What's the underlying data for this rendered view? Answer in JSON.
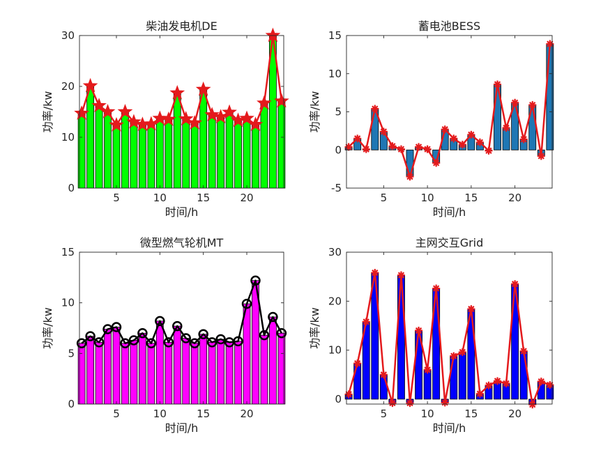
{
  "chart_data": [
    {
      "type": "bar",
      "title": "柴油发电机DE",
      "xlabel": "时间/h",
      "ylabel": "功率/kw",
      "x": [
        1,
        2,
        3,
        4,
        5,
        6,
        7,
        8,
        9,
        10,
        11,
        12,
        13,
        14,
        15,
        16,
        17,
        18,
        19,
        20,
        21,
        22,
        23,
        24
      ],
      "values": [
        14.7,
        20.1,
        16.2,
        15.0,
        12.4,
        15.0,
        13.0,
        12.5,
        12.6,
        13.7,
        13.5,
        18.7,
        13.6,
        12.8,
        19.4,
        14.4,
        14.0,
        14.9,
        13.3,
        13.7,
        12.5,
        16.7,
        30.0,
        17.1
      ],
      "ylim": [
        0,
        30
      ],
      "yticks": [
        0,
        10,
        20,
        30
      ],
      "xticks": [
        5,
        10,
        15,
        20
      ],
      "bar_color": "#00ff00",
      "line_color": "#e41a1c",
      "marker": "star"
    },
    {
      "type": "bar",
      "title": "蓄电池BESS",
      "xlabel": "时间/h",
      "ylabel": "功率/kw",
      "x": [
        1,
        2,
        3,
        4,
        5,
        6,
        7,
        8,
        9,
        10,
        11,
        12,
        13,
        14,
        15,
        16,
        17,
        18,
        19,
        20,
        21,
        22,
        23,
        24
      ],
      "values": [
        0.4,
        1.5,
        0.1,
        5.4,
        2.4,
        0.5,
        0.1,
        -3.5,
        0.4,
        0.1,
        -1.7,
        2.7,
        1.5,
        0.7,
        2.0,
        1.0,
        -0.1,
        8.6,
        2.9,
        6.2,
        1.4,
        5.9,
        -0.8,
        13.9
      ],
      "ylim": [
        -5,
        15
      ],
      "yticks": [
        -5,
        0,
        5,
        10,
        15
      ],
      "xticks": [
        5,
        10,
        15,
        20
      ],
      "bar_color": "#1f77b4",
      "line_color": "#e41a1c",
      "marker": "asterisk"
    },
    {
      "type": "bar",
      "title": "微型燃气轮机MT",
      "xlabel": "时间/h",
      "ylabel": "功率/kw",
      "x": [
        1,
        2,
        3,
        4,
        5,
        6,
        7,
        8,
        9,
        10,
        11,
        12,
        13,
        14,
        15,
        16,
        17,
        18,
        19,
        20,
        21,
        22,
        23,
        24
      ],
      "values": [
        6.0,
        6.7,
        6.1,
        7.4,
        7.6,
        6.0,
        6.3,
        7.0,
        6.0,
        8.2,
        6.1,
        7.7,
        6.5,
        6.0,
        6.9,
        6.1,
        6.4,
        6.1,
        6.2,
        9.9,
        12.2,
        6.8,
        8.6,
        7.0
      ],
      "ylim": [
        0,
        15
      ],
      "yticks": [
        0,
        5,
        10,
        15
      ],
      "xticks": [
        5,
        10,
        15,
        20
      ],
      "bar_color": "#ff00ff",
      "line_color": "#000000",
      "marker": "circle"
    },
    {
      "type": "bar",
      "title": "主网交互Grid",
      "xlabel": "时间/h",
      "ylabel": "功率/kw",
      "x": [
        1,
        2,
        3,
        4,
        5,
        6,
        7,
        8,
        9,
        10,
        11,
        12,
        13,
        14,
        15,
        16,
        17,
        18,
        19,
        20,
        21,
        22,
        23,
        24
      ],
      "values": [
        1.0,
        7.3,
        15.8,
        25.8,
        5.0,
        -0.8,
        25.3,
        -0.8,
        14.0,
        6.0,
        22.6,
        -0.7,
        8.8,
        9.6,
        18.4,
        1.1,
        2.8,
        3.7,
        3.2,
        23.5,
        9.8,
        -1.1,
        3.6,
        2.9
      ],
      "ylim": [
        -1,
        30
      ],
      "yticks": [
        0,
        10,
        20,
        30
      ],
      "xticks": [
        5,
        10,
        15,
        20
      ],
      "bar_color": "#0000ff",
      "line_color": "#e41a1c",
      "marker": "asterisk"
    }
  ]
}
